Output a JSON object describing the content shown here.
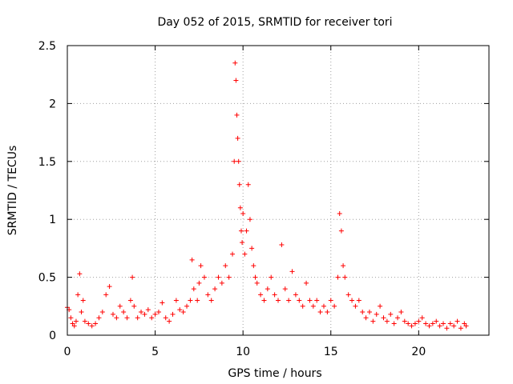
{
  "chart_data": {
    "type": "scatter",
    "title": "Day 052 of 2015, SRMTID for receiver tori",
    "xlabel": "GPS time / hours",
    "ylabel": "SRMTID / TECUs",
    "xlim": [
      0,
      24
    ],
    "ylim": [
      0,
      2.5
    ],
    "xticks": [
      0,
      5,
      10,
      15,
      20
    ],
    "xtick_labels": [
      "0",
      "5",
      "10",
      "15",
      "20"
    ],
    "yticks": [
      0,
      0.5,
      1,
      1.5,
      2,
      2.5
    ],
    "ytick_labels": [
      "0",
      "0.5",
      "1",
      "1.5",
      "2",
      "2.5"
    ],
    "grid": true,
    "marker": "+",
    "series": [
      {
        "name": "SRMTID",
        "color": "#ff0000",
        "x": [
          0.0,
          0.1,
          0.2,
          0.3,
          0.4,
          0.5,
          0.6,
          0.7,
          0.8,
          0.9,
          1.0,
          1.2,
          1.4,
          1.6,
          1.8,
          2.0,
          2.2,
          2.4,
          2.6,
          2.8,
          3.0,
          3.2,
          3.4,
          3.6,
          3.7,
          3.8,
          4.0,
          4.2,
          4.4,
          4.6,
          4.8,
          5.0,
          5.2,
          5.4,
          5.6,
          5.8,
          6.0,
          6.2,
          6.4,
          6.6,
          6.8,
          7.0,
          7.1,
          7.2,
          7.4,
          7.5,
          7.6,
          7.8,
          8.0,
          8.2,
          8.4,
          8.6,
          8.8,
          9.0,
          9.2,
          9.4,
          9.5,
          9.55,
          9.6,
          9.65,
          9.7,
          9.75,
          9.8,
          9.85,
          9.9,
          9.95,
          10.0,
          10.1,
          10.2,
          10.3,
          10.4,
          10.5,
          10.6,
          10.7,
          10.8,
          11.0,
          11.2,
          11.4,
          11.6,
          11.8,
          12.0,
          12.2,
          12.4,
          12.6,
          12.8,
          13.0,
          13.2,
          13.4,
          13.6,
          13.8,
          14.0,
          14.2,
          14.4,
          14.6,
          14.8,
          15.0,
          15.2,
          15.4,
          15.5,
          15.6,
          15.7,
          15.8,
          16.0,
          16.2,
          16.4,
          16.6,
          16.8,
          17.0,
          17.2,
          17.4,
          17.6,
          17.8,
          18.0,
          18.2,
          18.4,
          18.6,
          18.8,
          19.0,
          19.2,
          19.4,
          19.6,
          19.8,
          20.0,
          20.2,
          20.4,
          20.6,
          20.8,
          21.0,
          21.2,
          21.4,
          21.6,
          21.8,
          22.0,
          22.2,
          22.4,
          22.6,
          22.7
        ],
        "y": [
          0.24,
          0.22,
          0.15,
          0.1,
          0.08,
          0.12,
          0.35,
          0.53,
          0.2,
          0.3,
          0.12,
          0.1,
          0.08,
          0.1,
          0.15,
          0.2,
          0.35,
          0.42,
          0.18,
          0.15,
          0.25,
          0.2,
          0.15,
          0.3,
          0.5,
          0.25,
          0.15,
          0.2,
          0.18,
          0.22,
          0.15,
          0.18,
          0.2,
          0.28,
          0.15,
          0.12,
          0.18,
          0.3,
          0.22,
          0.2,
          0.25,
          0.3,
          0.65,
          0.4,
          0.3,
          0.45,
          0.6,
          0.5,
          0.35,
          0.3,
          0.4,
          0.5,
          0.45,
          0.6,
          0.5,
          0.7,
          1.5,
          2.35,
          2.2,
          1.9,
          1.7,
          1.5,
          1.3,
          1.1,
          0.9,
          0.8,
          1.05,
          0.7,
          0.9,
          1.3,
          1.0,
          0.75,
          0.6,
          0.5,
          0.45,
          0.35,
          0.3,
          0.4,
          0.5,
          0.35,
          0.3,
          0.78,
          0.4,
          0.3,
          0.55,
          0.35,
          0.3,
          0.25,
          0.45,
          0.3,
          0.25,
          0.3,
          0.2,
          0.25,
          0.2,
          0.3,
          0.25,
          0.5,
          1.05,
          0.9,
          0.6,
          0.5,
          0.35,
          0.3,
          0.25,
          0.3,
          0.2,
          0.15,
          0.2,
          0.12,
          0.18,
          0.25,
          0.15,
          0.12,
          0.18,
          0.1,
          0.15,
          0.2,
          0.12,
          0.1,
          0.08,
          0.1,
          0.12,
          0.15,
          0.1,
          0.08,
          0.1,
          0.12,
          0.08,
          0.1,
          0.06,
          0.1,
          0.08,
          0.12,
          0.06,
          0.1,
          0.08
        ]
      }
    ]
  }
}
